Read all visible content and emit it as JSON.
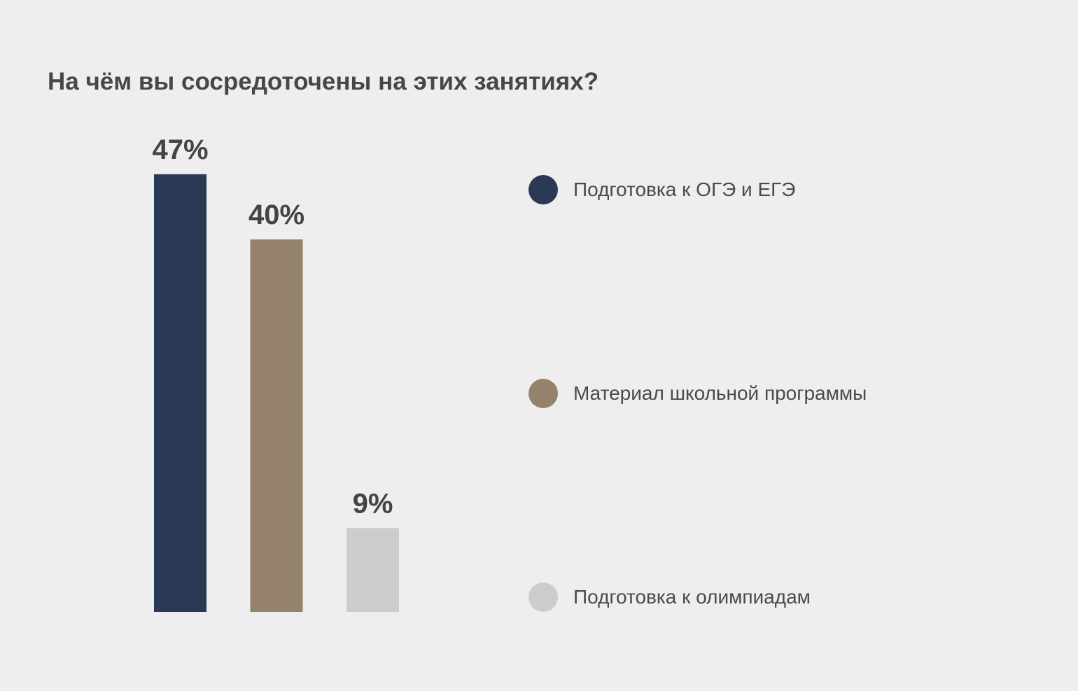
{
  "title": "На чём вы сосредоточены на этих занятиях?",
  "chart_data": {
    "type": "bar",
    "title": "На чём вы сосредоточены на этих занятиях?",
    "categories": [
      "Подготовка к ОГЭ и ЕГЭ",
      "Материал школьной программы",
      "Подготовка к олимпиадам"
    ],
    "values": [
      47,
      40,
      9
    ],
    "value_labels": [
      "47%",
      "40%",
      "9%"
    ],
    "colors": [
      "#2a3954",
      "#94826d",
      "#cccccc"
    ],
    "unit": "%",
    "xlabel": "",
    "ylabel": "",
    "grid": false,
    "legend_position": "right"
  },
  "legend": {
    "items": [
      {
        "label": "Подготовка к ОГЭ и ЕГЭ",
        "color": "#2a3954"
      },
      {
        "label": "Материал школьной программы",
        "color": "#94826d"
      },
      {
        "label": "Подготовка к олимпиадам",
        "color": "#cccccc"
      }
    ]
  }
}
